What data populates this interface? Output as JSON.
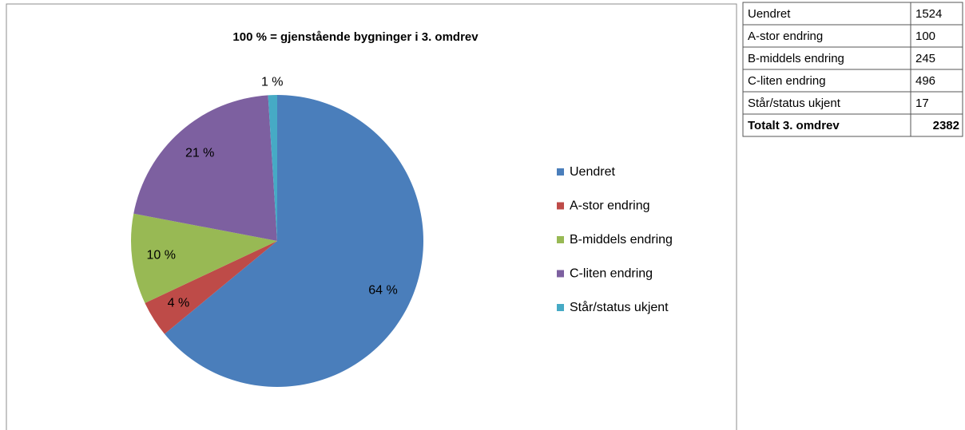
{
  "chart_data": {
    "type": "pie",
    "title": "100 % = gjenstående bygninger i 3. omdrev",
    "categories": [
      "Uendret",
      "A-stor endring",
      "B-middels endring",
      "C-liten endring",
      "Står/status ukjent"
    ],
    "values": [
      64,
      4,
      10,
      21,
      1
    ],
    "value_labels": [
      "64 %",
      "4 %",
      "10 %",
      "21 %",
      "1 %"
    ],
    "colors": [
      "#4a7ebb",
      "#be4b48",
      "#98b954",
      "#7d60a0",
      "#46aac5"
    ],
    "legend": "right"
  },
  "table": {
    "rows": [
      [
        "Uendret",
        1524
      ],
      [
        "A-stor endring",
        100
      ],
      [
        "B-middels endring",
        245
      ],
      [
        "C-liten endring",
        496
      ],
      [
        "Står/status ukjent",
        17
      ],
      [
        "Totalt 3. omdrev",
        2382
      ]
    ]
  }
}
